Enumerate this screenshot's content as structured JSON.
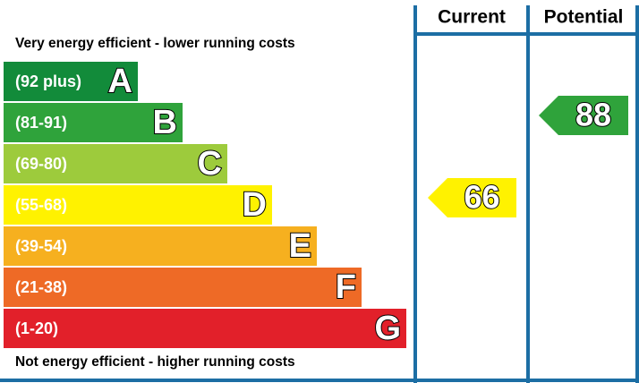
{
  "header": {
    "current": "Current",
    "potential": "Potential"
  },
  "top_note": "Very energy efficient - lower running costs",
  "bottom_note": "Not energy efficient - higher running costs",
  "bands": [
    {
      "range": "(92 plus)",
      "letter": "A",
      "color": "#128b3a"
    },
    {
      "range": "(81-91)",
      "letter": "B",
      "color": "#2fa33b"
    },
    {
      "range": "(69-80)",
      "letter": "C",
      "color": "#9dcb3c"
    },
    {
      "range": "(55-68)",
      "letter": "D",
      "color": "#fff200"
    },
    {
      "range": "(39-54)",
      "letter": "E",
      "color": "#f6b01f"
    },
    {
      "range": "(21-38)",
      "letter": "F",
      "color": "#ee6a26"
    },
    {
      "range": "(1-20)",
      "letter": "G",
      "color": "#e2202a"
    }
  ],
  "current": 66,
  "potential": 88
}
